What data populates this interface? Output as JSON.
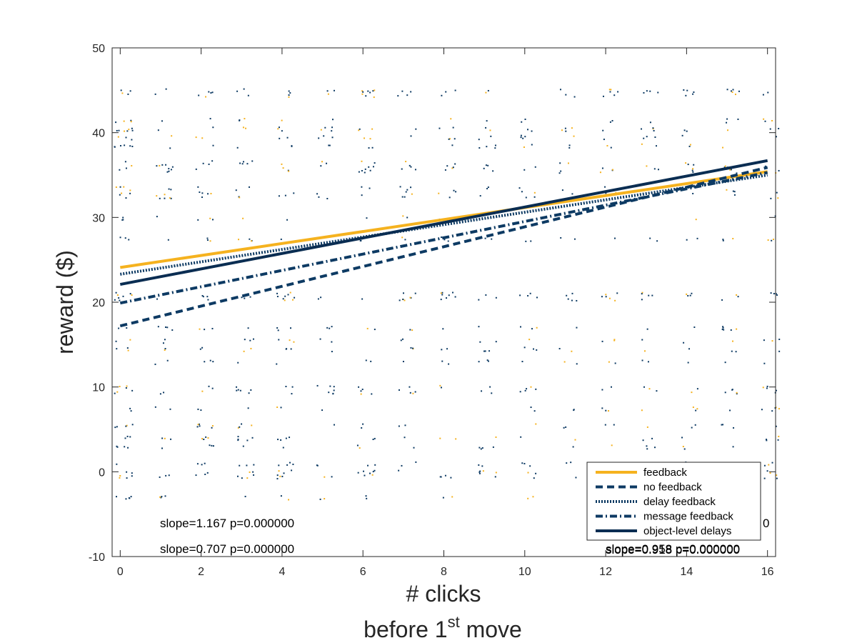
{
  "chart_data": {
    "type": "scatter",
    "xlabel_line1": "# clicks",
    "xlabel_line2_pre": "before 1",
    "xlabel_line2_sup": "st",
    "xlabel_line2_post": " move",
    "ylabel": "reward ($)",
    "xlim": [
      -0.2,
      16.2
    ],
    "ylim": [
      -10,
      50
    ],
    "xticks": [
      0,
      2,
      4,
      6,
      8,
      10,
      12,
      14,
      16
    ],
    "yticks": [
      -10,
      0,
      10,
      20,
      30,
      40,
      50
    ],
    "grid": false,
    "legend_position": "bottom-right",
    "colors": {
      "feedback": "#f5b21f",
      "navy": "#0d3a63",
      "dark": "#0a2d52"
    },
    "series": [
      {
        "name": "feedback",
        "style": "solid",
        "color": "#f5b21f",
        "intercept": 24.1,
        "end": 35.4
      },
      {
        "name": "no feedback",
        "style": "dashed",
        "color": "#0d3a63",
        "intercept": 17.2,
        "end": 35.9
      },
      {
        "name": "delay feedback",
        "style": "dotted",
        "color": "#0d3a63",
        "intercept": 23.3,
        "end": 35.0
      },
      {
        "name": "message feedback",
        "style": "dashdot",
        "color": "#0d3a63",
        "intercept": 19.9,
        "end": 35.3
      },
      {
        "name": "object-level delays",
        "style": "solid",
        "color": "#0a2d52",
        "intercept": 22.1,
        "end": 36.7
      }
    ],
    "annotations": [
      {
        "id": "a1",
        "text": "slope=1.167 p=0.000000"
      },
      {
        "id": "a2",
        "text": "slope=0.707 p=0.000000"
      },
      {
        "id": "a3",
        "text": "slope=0.958 p=0.000000"
      },
      {
        "id": "a4",
        "text": "slope=0.918 p=0.000000"
      },
      {
        "id": "a5",
        "text": "0"
      }
    ]
  }
}
